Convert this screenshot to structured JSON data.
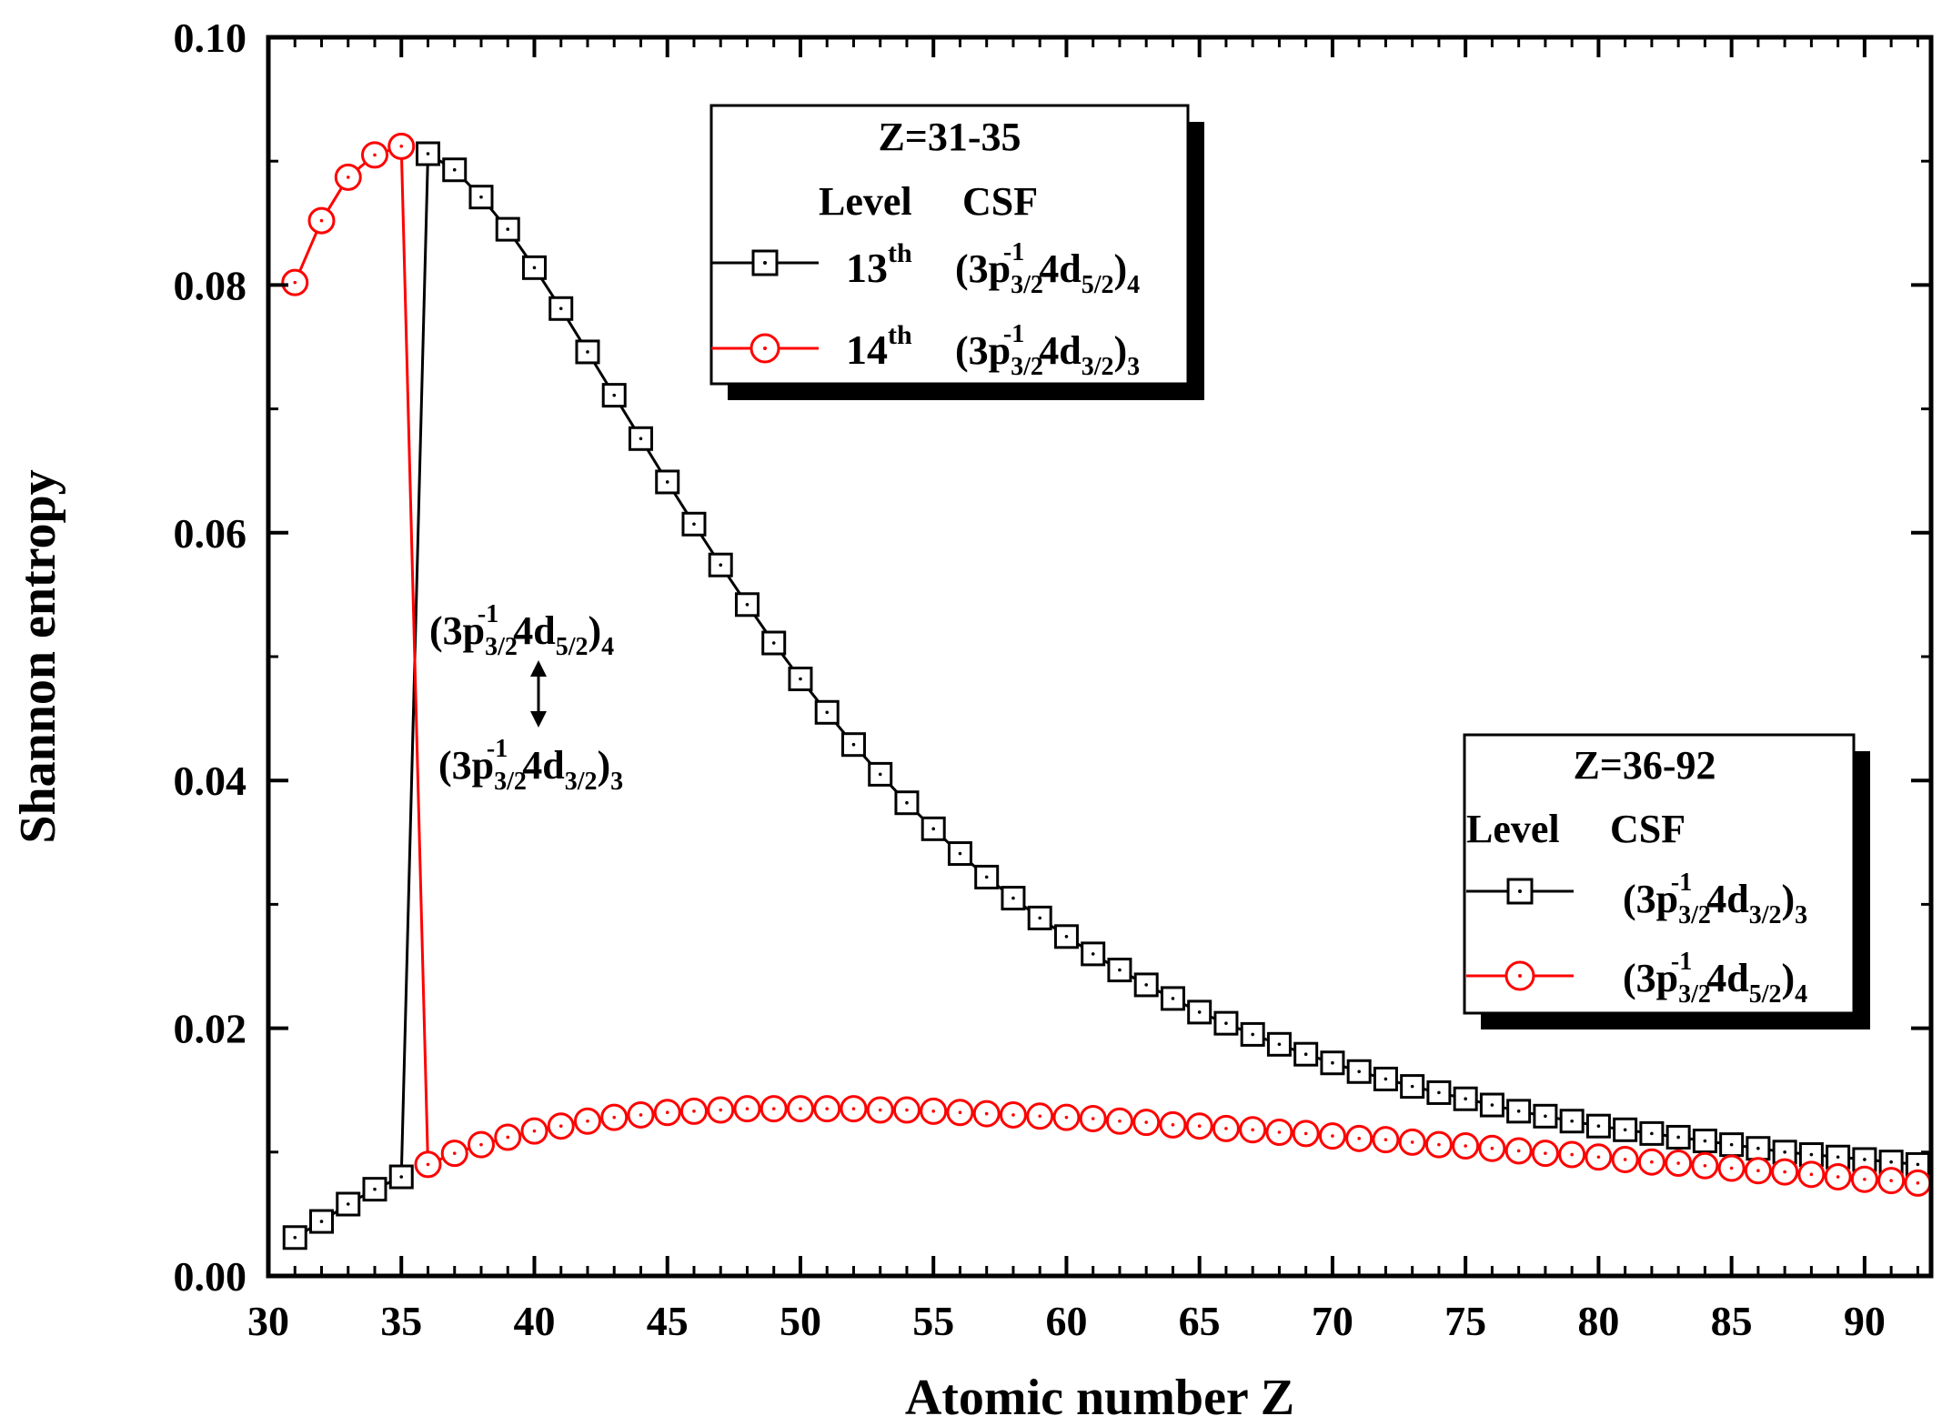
{
  "chart_data": {
    "type": "line",
    "title": "",
    "xlabel": "Atomic number Z",
    "ylabel": "Shannon entropy",
    "xlim": [
      30,
      92.5
    ],
    "ylim": [
      0.0,
      0.1
    ],
    "x_ticks": [
      "30",
      "35",
      "40",
      "45",
      "50",
      "55",
      "60",
      "65",
      "70",
      "75",
      "80",
      "85",
      "90"
    ],
    "y_ticks": [
      "0.00",
      "0.02",
      "0.04",
      "0.06",
      "0.08",
      "0.10"
    ],
    "x": [
      31,
      32,
      33,
      34,
      35,
      36,
      37,
      38,
      39,
      40,
      41,
      42,
      43,
      44,
      45,
      46,
      47,
      48,
      49,
      50,
      51,
      52,
      53,
      54,
      55,
      56,
      57,
      58,
      59,
      60,
      61,
      62,
      63,
      64,
      65,
      66,
      67,
      68,
      69,
      70,
      71,
      72,
      73,
      74,
      75,
      76,
      77,
      78,
      79,
      80,
      81,
      82,
      83,
      84,
      85,
      86,
      87,
      88,
      89,
      90,
      91,
      92
    ],
    "series": [
      {
        "name": "13th level (black squares)",
        "color": "#000000",
        "marker": "square",
        "values": [
          0.0031,
          0.0044,
          0.0058,
          0.007,
          0.008,
          0.0906,
          0.0893,
          0.0871,
          0.0845,
          0.0814,
          0.0781,
          0.0746,
          0.0711,
          0.0676,
          0.0641,
          0.0607,
          0.0574,
          0.0542,
          0.0511,
          0.0482,
          0.0455,
          0.0429,
          0.0405,
          0.0382,
          0.0361,
          0.0341,
          0.0322,
          0.0305,
          0.0289,
          0.0274,
          0.026,
          0.0247,
          0.0235,
          0.0224,
          0.0213,
          0.0204,
          0.0195,
          0.0187,
          0.0179,
          0.0172,
          0.0165,
          0.0159,
          0.0153,
          0.0148,
          0.0143,
          0.0138,
          0.0133,
          0.0129,
          0.0125,
          0.0121,
          0.0118,
          0.0115,
          0.0112,
          0.0109,
          0.0106,
          0.0103,
          0.01,
          0.0098,
          0.0096,
          0.0094,
          0.0092,
          0.009
        ]
      },
      {
        "name": "14th level (red circles)",
        "color": "#ff0000",
        "marker": "circle",
        "values": [
          0.0802,
          0.0852,
          0.0887,
          0.0905,
          0.0912,
          0.009,
          0.0099,
          0.0106,
          0.0112,
          0.0117,
          0.0121,
          0.0125,
          0.0128,
          0.013,
          0.0132,
          0.0133,
          0.0134,
          0.0135,
          0.0135,
          0.0135,
          0.0135,
          0.0135,
          0.0134,
          0.0134,
          0.0133,
          0.0132,
          0.0131,
          0.013,
          0.0129,
          0.0128,
          0.0127,
          0.0125,
          0.0124,
          0.0122,
          0.0121,
          0.0119,
          0.0118,
          0.0116,
          0.0115,
          0.0113,
          0.0111,
          0.011,
          0.0108,
          0.0106,
          0.0105,
          0.0103,
          0.0101,
          0.0099,
          0.0098,
          0.0096,
          0.0094,
          0.0092,
          0.0091,
          0.0089,
          0.0087,
          0.0085,
          0.0084,
          0.0082,
          0.008,
          0.0078,
          0.0077,
          0.0075
        ]
      }
    ],
    "legend1": {
      "title": "Z=31-35",
      "header_level": "Level",
      "header_csf": "CSF",
      "rows": [
        {
          "level_base": "13",
          "level_sup": "th",
          "csf_main1": "(3p",
          "csf_sub1": "3/2",
          "csf_sup1": "-1",
          "csf_main2": "4d",
          "csf_sub2": "5/2",
          "csf_main3": ")",
          "csf_sub3": "4"
        },
        {
          "level_base": "14",
          "level_sup": "th",
          "csf_main1": "(3p",
          "csf_sub1": "3/2",
          "csf_sup1": "-1",
          "csf_main2": "4d",
          "csf_sub2": "3/2",
          "csf_main3": ")",
          "csf_sub3": "3"
        }
      ]
    },
    "legend2": {
      "title": "Z=36-92",
      "header_level": "Level",
      "header_csf": "CSF",
      "rows": [
        {
          "csf_main1": "(3p",
          "csf_sub1": "3/2",
          "csf_sup1": "-1",
          "csf_main2": "4d",
          "csf_sub2": "3/2",
          "csf_main3": ")",
          "csf_sub3": "3"
        },
        {
          "csf_main1": "(3p",
          "csf_sub1": "3/2",
          "csf_sup1": "-1",
          "csf_main2": "4d",
          "csf_sub2": "5/2",
          "csf_main3": ")",
          "csf_sub3": "4"
        }
      ]
    },
    "annotation": {
      "upper": {
        "csf_main1": "(3p",
        "csf_sub1": "3/2",
        "csf_sup1": "-1",
        "csf_main2": "4d",
        "csf_sub2": "5/2",
        "csf_main3": ")",
        "csf_sub3": "4"
      },
      "lower": {
        "csf_main1": "(3p",
        "csf_sub1": "3/2",
        "csf_sup1": "-1",
        "csf_main2": "4d",
        "csf_sub2": "3/2",
        "csf_main3": ")",
        "csf_sub3": "3"
      }
    }
  }
}
